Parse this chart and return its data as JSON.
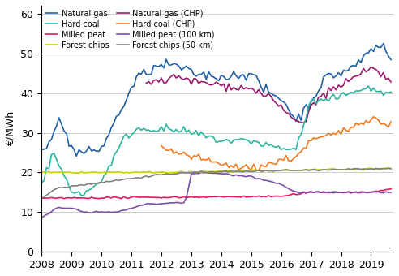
{
  "title": "",
  "ylabel": "€/MWh",
  "ylim": [
    0,
    62
  ],
  "yticks": [
    0,
    10,
    20,
    30,
    40,
    50,
    60
  ],
  "colors": {
    "Natural gas": "#1f5fa6",
    "Hard coal": "#2bb5a0",
    "Milled peat": "#e8175d",
    "Forest chips": "#c8d400",
    "Natural gas (CHP)": "#9b1a6e",
    "Hard coal (CHP)": "#f07820",
    "Milled peat (100 km)": "#7b4fa6",
    "Forest chips (50 km)": "#808080"
  },
  "legend_order": [
    "Natural gas",
    "Natural gas (CHP)",
    "Hard coal",
    "Hard coal (CHP)",
    "Milled peat",
    "Milled peat (100 km)",
    "Forest chips",
    "Forest chips (50 km)"
  ],
  "background_color": "#ffffff",
  "grid_color": "#cccccc",
  "font_size": 9,
  "linewidth": 1.2
}
